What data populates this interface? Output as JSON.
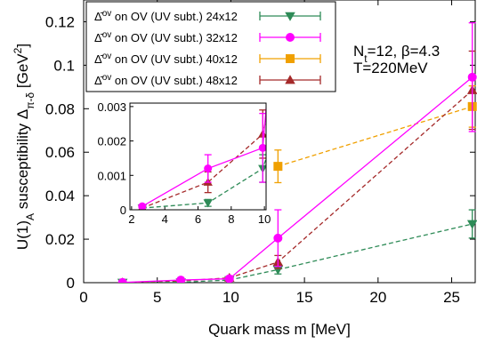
{
  "chart_data": {
    "type": "line",
    "xlabel": "Quark mass m [MeV]",
    "ylabel_main": "U(1)",
    "ylabel_sub": "A",
    "ylabel_rest": " susceptibility Δ",
    "ylabel_subscript2": "π-δ",
    "ylabel_unit": " [GeV",
    "ylabel_unit_sup": "2",
    "ylabel_close": "]",
    "xlim": [
      0,
      26.6
    ],
    "ylim": [
      0,
      0.13
    ],
    "xticks": [
      "0",
      "5",
      "10",
      "15",
      "20",
      "25"
    ],
    "xtick_values": [
      0,
      5,
      10,
      15,
      20,
      25
    ],
    "yticks": [
      "0",
      "0.02",
      "0.04",
      "0.06",
      "0.08",
      "0.1",
      "0.12"
    ],
    "ytick_values": [
      0,
      0.02,
      0.04,
      0.06,
      0.08,
      0.1,
      0.12
    ],
    "annotation_line1": "N",
    "annotation_line1_sub": "t",
    "annotation_line1_rest": "=12, β=4.3",
    "annotation_line2": "T=220MeV",
    "legend_prefix": "Δ̄",
    "legend_sup": "ov",
    "series": [
      {
        "name": "on OV (UV subt.) 24x12",
        "color": "#2e8b57",
        "marker": "triangle-down",
        "dashed": true,
        "x": [
          2.64,
          6.6,
          9.9,
          13.2,
          26.4
        ],
        "y": [
          5e-05,
          0.0002,
          0.0012,
          0.006,
          0.027
        ],
        "err": [
          5e-05,
          0.0001,
          0.0004,
          0.002,
          0.0065
        ]
      },
      {
        "name": "on OV (UV subt.) 32x12",
        "color": "#ff00ff",
        "marker": "circle",
        "dashed": false,
        "x": [
          2.64,
          6.6,
          9.9,
          13.2,
          26.4
        ],
        "y": [
          0.0001,
          0.0012,
          0.0018,
          0.0205,
          0.0945
        ],
        "err": [
          5e-05,
          0.0004,
          0.001,
          0.013,
          0.025
        ]
      },
      {
        "name": "on OV (UV subt.) 40x12",
        "color": "#f0a000",
        "marker": "square",
        "dashed": true,
        "x": [
          13.2,
          26.4
        ],
        "y": [
          0.0535,
          0.081
        ],
        "err": [
          0.0075,
          0.0095
        ]
      },
      {
        "name": "on OV (UV subt.) 48x12",
        "color": "#a52a2a",
        "marker": "triangle-up",
        "dashed": true,
        "x": [
          2.64,
          6.6,
          9.9,
          13.2,
          26.4
        ],
        "y": [
          5e-05,
          0.0008,
          0.0022,
          0.0095,
          0.0885
        ],
        "err": [
          4e-05,
          0.0003,
          0.0007,
          0.003,
          0.018
        ]
      }
    ],
    "inset": {
      "xlim": [
        1.9,
        10.1
      ],
      "ylim": [
        0,
        0.0031
      ],
      "xticks": [
        "2",
        "4",
        "6",
        "8",
        "10"
      ],
      "xtick_values": [
        2,
        4,
        6,
        8,
        10
      ],
      "yticks": [
        "0",
        "0.001",
        "0.002",
        "0.003"
      ],
      "ytick_values": [
        0,
        0.001,
        0.002,
        0.003
      ]
    }
  }
}
